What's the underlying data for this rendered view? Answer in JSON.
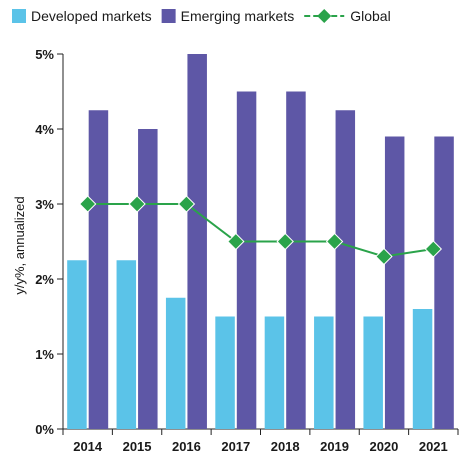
{
  "chart_data": {
    "type": "bar",
    "categories": [
      "2014",
      "2015",
      "2016",
      "2017",
      "2018",
      "2019",
      "2020",
      "2021"
    ],
    "series": [
      {
        "name": "Developed markets",
        "kind": "bar",
        "color": "#5bc3e8",
        "values": [
          2.25,
          2.25,
          1.75,
          1.5,
          1.5,
          1.5,
          1.5,
          1.6
        ]
      },
      {
        "name": "Emerging markets",
        "kind": "bar",
        "color": "#5e57a6",
        "values": [
          4.25,
          4.0,
          5.0,
          4.5,
          4.5,
          4.25,
          3.9,
          3.9
        ]
      },
      {
        "name": "Global",
        "kind": "line",
        "color": "#2aa34a",
        "values": [
          3.0,
          3.0,
          3.0,
          2.5,
          2.5,
          2.5,
          2.3,
          2.4
        ]
      }
    ],
    "ylabel": "y/y%, annualized",
    "ylim": [
      0,
      5
    ],
    "yticks": [
      0,
      1,
      2,
      3,
      4,
      5
    ],
    "ytick_labels": [
      "0%",
      "1%",
      "2%",
      "3%",
      "4%",
      "5%"
    ],
    "grid": false,
    "legend_position": "top-left"
  }
}
